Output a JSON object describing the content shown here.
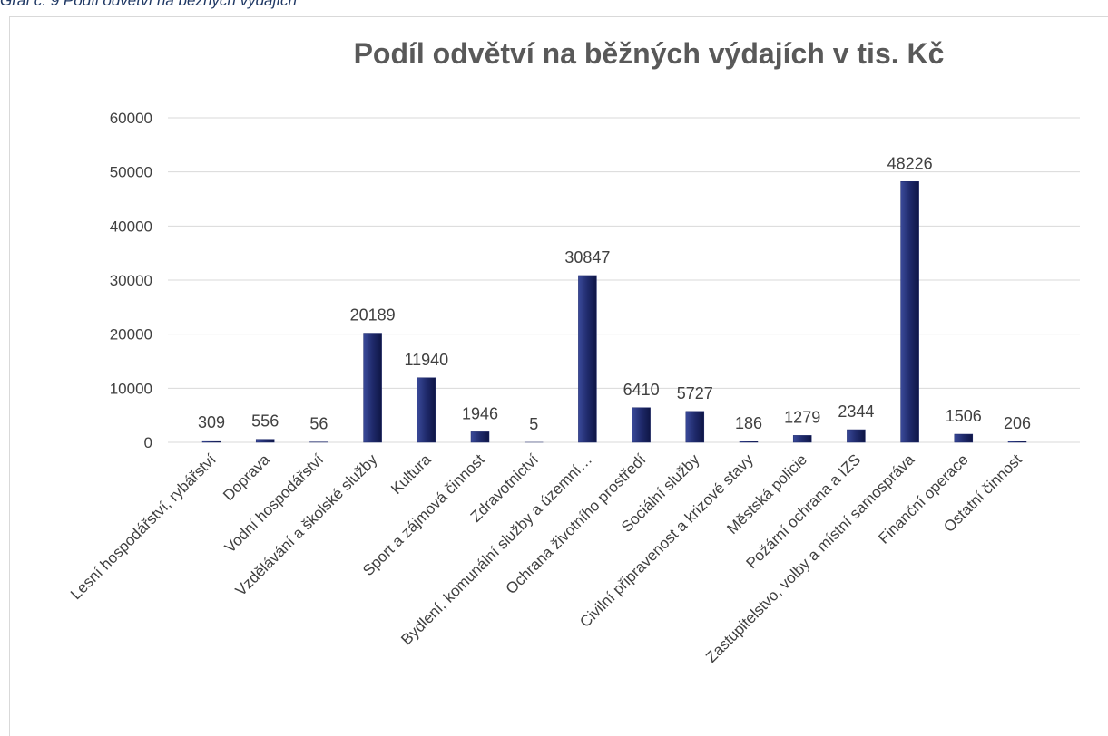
{
  "caption": "Graf č. 9 Podíl odvětví na běžných výdajích",
  "chart_data": {
    "type": "bar",
    "title": "Podíl odvětví na běžných výdajích v tis. Kč",
    "categories": [
      "Lesní hospodářství, rybářství",
      "Doprava",
      "Vodní hospodářství",
      "Vzdělávání a školské služby",
      "Kultura",
      "Sport a zájmová činnost",
      "Zdravotnictví",
      "Bydlení, komunální služby a územní…",
      "Ochrana životního prostředí",
      "Sociální služby",
      "Civilní připravenost a krizové stavy",
      "Městská policie",
      "Požární ochrana a IZS",
      "Zastupitelstvo, volby a místní samospráva",
      "Finanční operace",
      "Ostatní činnost"
    ],
    "values": [
      309,
      556,
      56,
      20189,
      11940,
      1946,
      5,
      30847,
      6410,
      5727,
      186,
      1279,
      2344,
      48226,
      1506,
      206
    ],
    "color": "#1f2a6b",
    "ylim": [
      0,
      60000
    ],
    "yticks": [
      0,
      10000,
      20000,
      30000,
      40000,
      50000,
      60000
    ],
    "grid": true
  }
}
